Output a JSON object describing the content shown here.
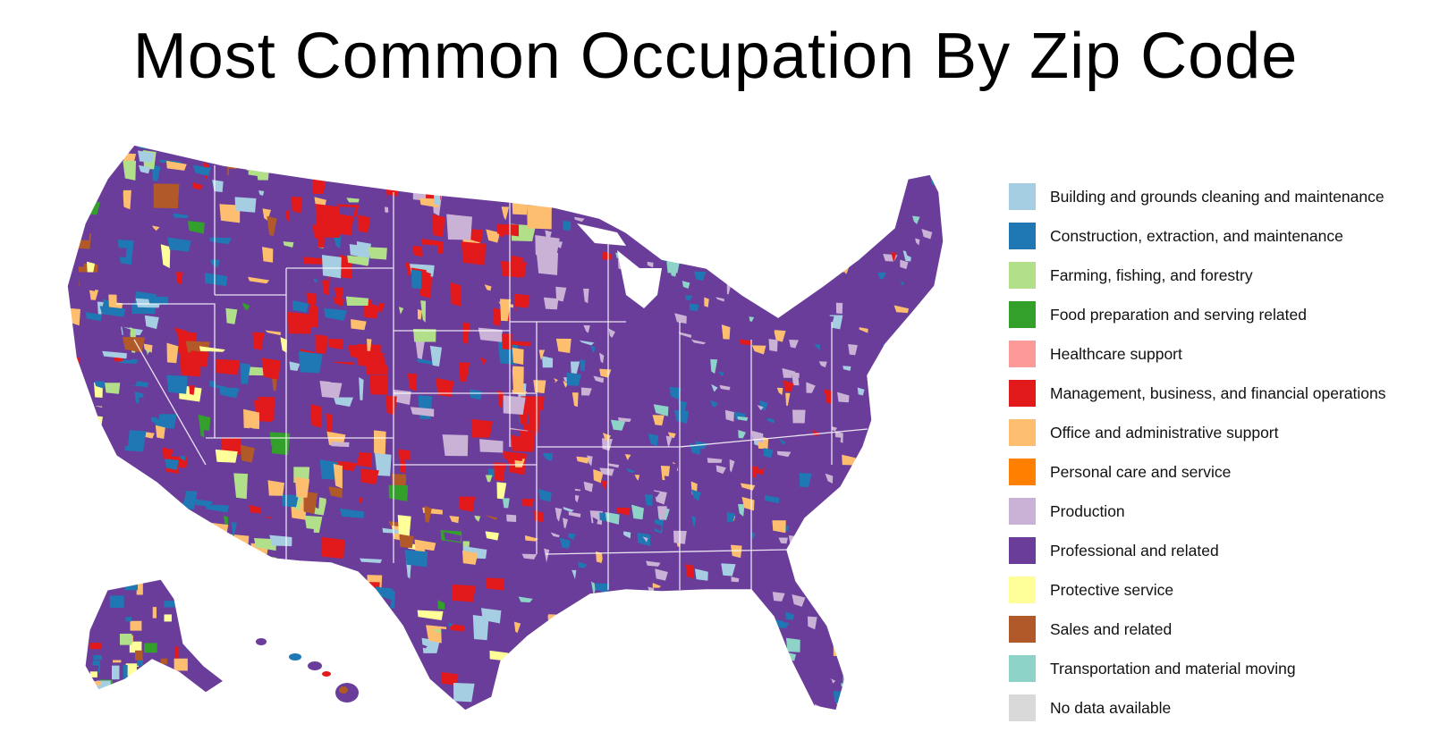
{
  "title": "Most Common Occupation By Zip Code",
  "legend": [
    {
      "label": "Building and grounds cleaning and maintenance",
      "color": "#a6cee3"
    },
    {
      "label": "Construction, extraction, and maintenance",
      "color": "#1f78b4"
    },
    {
      "label": "Farming, fishing, and forestry",
      "color": "#b2df8a"
    },
    {
      "label": "Food preparation and serving related",
      "color": "#33a02c"
    },
    {
      "label": "Healthcare support",
      "color": "#fb9a99"
    },
    {
      "label": "Management, business, and financial operations",
      "color": "#e31a1c"
    },
    {
      "label": "Office and administrative support",
      "color": "#fdbf6f"
    },
    {
      "label": "Personal care and service",
      "color": "#ff7f00"
    },
    {
      "label": "Production",
      "color": "#cab2d6"
    },
    {
      "label": "Professional and related",
      "color": "#6a3d9a"
    },
    {
      "label": "Protective service",
      "color": "#ffff99"
    },
    {
      "label": "Sales and related",
      "color": "#b15928"
    },
    {
      "label": "Transportation and material moving",
      "color": "#8dd3c7"
    },
    {
      "label": "No data available",
      "color": "#d9d9d9"
    }
  ]
}
